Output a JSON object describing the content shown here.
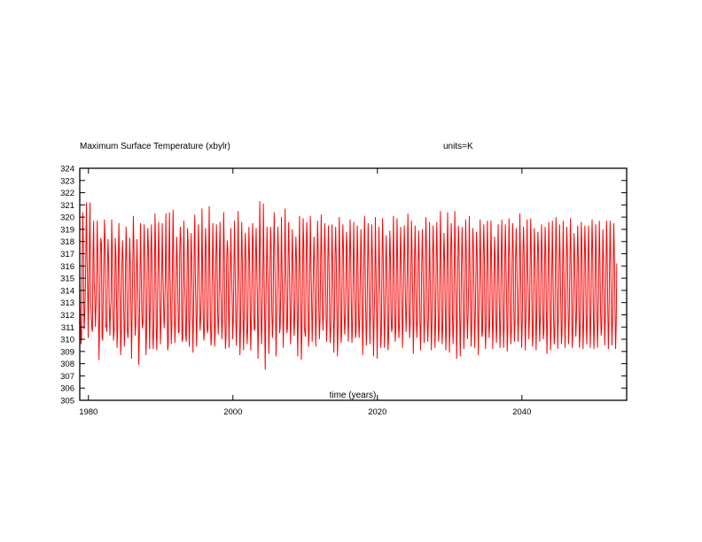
{
  "header": {
    "title": "Maximum Surface Temperature (xbylr)",
    "units": "units=K"
  },
  "chart_data": {
    "type": "line",
    "title": "Maximum Surface Temperature (xbylr)",
    "units_label": "units=K",
    "xlabel": "time (years)",
    "ylabel": "",
    "xlim": [
      1978.8,
      2054.5
    ],
    "ylim": [
      305,
      324
    ],
    "x_ticks": [
      1980,
      2000,
      2020,
      2040
    ],
    "y_ticks": [
      305,
      306,
      307,
      308,
      309,
      310,
      311,
      312,
      313,
      314,
      315,
      316,
      317,
      318,
      319,
      320,
      321,
      322,
      323,
      324
    ],
    "grid": false,
    "legend": "none",
    "series_color": "#ff0000",
    "sampling": "monthly",
    "start_year": 1978.8,
    "series": [
      {
        "values": [
          316.0,
          312.0,
          309.6,
          310.2,
          316.8,
          320.4,
          317.7,
          310.8,
          311.6,
          313.4,
          316.5,
          321.2,
          317.0,
          314.6,
          310.1,
          314.6,
          317.7,
          321.2,
          313.2,
          312.0,
          310.9,
          310.6,
          317.1,
          319.7,
          314.7,
          313.4,
          311.0,
          312.7,
          316.0,
          319.7,
          316.7,
          312.4,
          308.3,
          312.0,
          316.6,
          318.3,
          317.8,
          310.2,
          309.9,
          313.6,
          316.6,
          319.8,
          317.9,
          311.0,
          311.2,
          310.6,
          316.0,
          318.2,
          316.2,
          312.5,
          310.3,
          312.5,
          313.1,
          319.8,
          317.5,
          312.6,
          309.9,
          310.6,
          313.7,
          318.3,
          317.0,
          313.4,
          309.3,
          310.9,
          316.5,
          319.5,
          316.0,
          313.1,
          308.7,
          310.4,
          316.2,
          318.1,
          316.3,
          312.5,
          309.4,
          310.9,
          316.1,
          319.2,
          316.5,
          310.8,
          310.1,
          311.2,
          315.4,
          318.3,
          316.3,
          312.3,
          308.4,
          312.4,
          316.0,
          320.1,
          317.3,
          313.1,
          310.3,
          311.1,
          315.1,
          318.2,
          315.5,
          312.2,
          307.9,
          310.4,
          315.3,
          319.5,
          315.8,
          312.1,
          310.9,
          311.3,
          316.8,
          319.4,
          316.6,
          312.1,
          308.7,
          310.6,
          316.2,
          319.1,
          317.5,
          313.1,
          309.2,
          312.3,
          317.1,
          319.4,
          316.2,
          310.7,
          309.2,
          311.3,
          315.0,
          320.3,
          317.4,
          310.7,
          309.1,
          312.0,
          316.3,
          319.6,
          316.2,
          313.1,
          309.6,
          311.5,
          315.0,
          319.5,
          315.7,
          313.4,
          310.9,
          312.0,
          314.9,
          320.3,
          315.5,
          313.5,
          309.1,
          309.6,
          316.7,
          320.4,
          315.2,
          312.7,
          309.6,
          311.2,
          316.7,
          320.6,
          316.4,
          312.3,
          309.7,
          311.5,
          315.1,
          318.4,
          316.3,
          313.2,
          310.5,
          310.6,
          316.9,
          319.2,
          318.0,
          313.0,
          309.8,
          310.1,
          316.8,
          319.7,
          314.9,
          313.1,
          310.3,
          309.8,
          314.5,
          319.1,
          317.9,
          311.6,
          309.4,
          312.0,
          315.5,
          318.7,
          316.5,
          312.3,
          308.9,
          312.2,
          317.4,
          320.2,
          315.1,
          312.2,
          309.4,
          312.4,
          316.1,
          319.4,
          316.8,
          312.1,
          310.7,
          312.0,
          314.3,
          320.7,
          315.9,
          311.9,
          309.9,
          310.6,
          316.5,
          319.1,
          317.1,
          311.5,
          310.5,
          310.9,
          316.2,
          320.9,
          316.2,
          311.4,
          309.5,
          310.3,
          315.1,
          319.5,
          316.7,
          314.2,
          309.4,
          310.5,
          316.4,
          319.4,
          317.1,
          312.2,
          310.4,
          311.8,
          317.1,
          319.6,
          314.1,
          313.2,
          310.0,
          311.3,
          315.2,
          320.4,
          317.3,
          311.6,
          309.2,
          310.4,
          316.4,
          318.1,
          317.3,
          312.5,
          309.3,
          313.5,
          315.8,
          319.1,
          315.6,
          313.6,
          310.0,
          311.4,
          315.8,
          319.7,
          316.1,
          312.1,
          309.5,
          311.5,
          315.1,
          320.5,
          316.7,
          312.5,
          308.7,
          310.6,
          316.0,
          319.6,
          316.6,
          312.2,
          309.1,
          311.5,
          316.8,
          318.7,
          316.4,
          311.5,
          309.6,
          310.9,
          316.0,
          319.2,
          316.6,
          312.8,
          309.1,
          311.2,
          315.5,
          319.5,
          317.9,
          312.0,
          310.7,
          310.9,
          316.9,
          319.1,
          315.8,
          313.3,
          308.4,
          311.1,
          316.1,
          321.3,
          317.2,
          311.3,
          309.6,
          312.4,
          314.7,
          321.1,
          316.3,
          312.1,
          307.5,
          312.1,
          315.5,
          319.2,
          316.3,
          314.0,
          308.8,
          311.0,
          316.3,
          319.2,
          317.4,
          312.4,
          310.1,
          311.6,
          317.6,
          320.4,
          316.3,
          312.8,
          308.6,
          311.4,
          315.5,
          319.2,
          317.4,
          314.1,
          310.5,
          311.1,
          314.7,
          320.0,
          315.6,
          312.9,
          309.3,
          312.0,
          315.5,
          320.7,
          316.7,
          313.2,
          310.5,
          310.9,
          316.7,
          319.6,
          316.4,
          313.1,
          309.6,
          311.5,
          315.7,
          319.0,
          316.2,
          312.8,
          310.3,
          311.5,
          315.9,
          318.4,
          316.6,
          312.1,
          308.6,
          312.1,
          316.3,
          320.1,
          316.1,
          313.1,
          308.3,
          310.5,
          315.2,
          319.9,
          317.8,
          311.0,
          310.5,
          310.2,
          316.4,
          319.6,
          318.0,
          313.1,
          309.4,
          310.4,
          315.5,
          320.1,
          316.3,
          313.4,
          309.8,
          312.1,
          315.6,
          318.4,
          316.5,
          312.9,
          309.4,
          312.0,
          316.1,
          319.7,
          317.2,
          312.6,
          310.0,
          311.5,
          315.8,
          320.2,
          316.8,
          312.4,
          310.7,
          312.3,
          316.7,
          319.5,
          316.9,
          312.1,
          309.8,
          311.7,
          316.6,
          319.3,
          316.4,
          311.7,
          309.7,
          310.9,
          315.3,
          319.4,
          316.5,
          312.3,
          308.9,
          311.7,
          316.8,
          319.2,
          316.7,
          312.1,
          308.6,
          310.7,
          315.4,
          320.0,
          316.7,
          313.1,
          309.7,
          310.5,
          316.5,
          319.4,
          317.5,
          312.1,
          310.4,
          311.6,
          314.6,
          318.8,
          317.5,
          312.6,
          309.8,
          312.0,
          316.3,
          319.8,
          317.1,
          313.0,
          309.7,
          311.0,
          314.8,
          319.6,
          316.0,
          313.4,
          310.1,
          310.6,
          315.7,
          319.3,
          316.4,
          311.8,
          310.1,
          311.8,
          315.6,
          319.0,
          317.1,
          312.4,
          308.7,
          311.8,
          317.0,
          320.1,
          316.7,
          312.2,
          309.5,
          311.4,
          315.8,
          319.5,
          316.7,
          312.9,
          309.6,
          312.3,
          315.4,
          319.4,
          316.8,
          311.9,
          308.6,
          311.9,
          314.2,
          320.0,
          316.1,
          312.4,
          308.4,
          312.5,
          314.8,
          319.2,
          316.0,
          312.5,
          309.3,
          310.5,
          316.3,
          319.9,
          316.9,
          312.4,
          309.3,
          311.7,
          315.9,
          318.5,
          315.6,
          312.2,
          309.1,
          310.1,
          315.5,
          318.9,
          316.8,
          312.1,
          310.6,
          310.9,
          315.6,
          320.1,
          316.1,
          312.3,
          309.8,
          310.7,
          315.6,
          319.9,
          316.5,
          311.9,
          310.1,
          311.2,
          316.2,
          319.2,
          316.4,
          313.1,
          309.3,
          311.7,
          315.7,
          319.3,
          316.9,
          313.0,
          310.6,
          312.4,
          315.8,
          320.3,
          317.1,
          312.1,
          310.1,
          311.6,
          315.7,
          319.7,
          316.9,
          313.6,
          308.8,
          311.3,
          316.4,
          319.3,
          316.5,
          311.6,
          310.1,
          311.8,
          316.2,
          318.9,
          316.1,
          311.6,
          309.1,
          311.6,
          316.1,
          319.0,
          316.6,
          312.7,
          309.7,
          311.5,
          316.8,
          320.0,
          317.4,
          311.6,
          309.8,
          311.4,
          314.8,
          319.6,
          315.2,
          312.4,
          309.1,
          311.2,
          316.8,
          319.3,
          316.6,
          312.8,
          309.3,
          311.1,
          316.5,
          319.6,
          316.4,
          312.2,
          309.8,
          311.0,
          315.6,
          320.5,
          317.0,
          311.6,
          309.6,
          311.3,
          316.2,
          318.7,
          316.3,
          312.8,
          309.1,
          310.6,
          316.1,
          320.4,
          316.5,
          312.9,
          308.9,
          310.8,
          316.6,
          319.5,
          317.6,
          312.0,
          309.6,
          311.2,
          316.0,
          320.5,
          317.1,
          313.0,
          308.4,
          311.7,
          316.4,
          319.3,
          317.5,
          312.2,
          308.6,
          311.5,
          316.0,
          319.2,
          316.8,
          312.6,
          309.2,
          311.2,
          315.6,
          319.8,
          317.2,
          312.0,
          310.0,
          312.0,
          314.7,
          320.1,
          316.6,
          312.9,
          309.4,
          310.8,
          316.4,
          319.1,
          317.5,
          312.7,
          309.3,
          311.9,
          315.2,
          318.8,
          317.3,
          312.2,
          308.7,
          312.2,
          315.4,
          319.8,
          316.8,
          312.6,
          310.2,
          310.6,
          316.5,
          319.4,
          317.2,
          311.5,
          309.2,
          311.0,
          316.0,
          319.7,
          316.7,
          311.8,
          310.1,
          311.5,
          315.3,
          319.7,
          316.6,
          312.7,
          309.2,
          311.7,
          315.1,
          318.4,
          316.6,
          312.1,
          309.7,
          311.2,
          316.2,
          319.4,
          315.4,
          312.4,
          309.3,
          311.4,
          316.7,
          319.8,
          315.9,
          312.5,
          309.3,
          311.1,
          316.9,
          319.4,
          316.2,
          313.2,
          309.0,
          310.6,
          316.3,
          319.9,
          316.6,
          312.2,
          309.6,
          310.6,
          316.2,
          319.5,
          317.4,
          312.3,
          309.8,
          311.4,
          316.9,
          319.1,
          316.1,
          312.8,
          309.8,
          311.6,
          315.2,
          320.3,
          317.1,
          312.3,
          309.3,
          311.3,
          316.6,
          319.2,
          317.5,
          312.9,
          309.1,
          311.4,
          315.5,
          319.8,
          315.9,
          313.4,
          310.0,
          311.8,
          316.0,
          319.9,
          317.2,
          312.6,
          309.4,
          310.4,
          315.8,
          319.1,
          316.9,
          312.4,
          309.1,
          311.8,
          316.4,
          318.8,
          317.2,
          311.9,
          309.8,
          311.8,
          316.0,
          319.4,
          317.0,
          312.6,
          310.0,
          310.7,
          315.9,
          319.2,
          317.1,
          312.5,
          308.8,
          311.4,
          315.6,
          319.6,
          317.2,
          312.8,
          309.1,
          310.8,
          315.6,
          319.7,
          315.6,
          311.9,
          309.6,
          310.3,
          316.1,
          320.0,
          317.5,
          312.5,
          309.2,
          311.9,
          316.0,
          319.4,
          316.4,
          312.9,
          309.6,
          310.4,
          315.9,
          319.7,
          316.0,
          313.1,
          309.3,
          311.8,
          316.5,
          319.2,
          317.0,
          312.7,
          309.6,
          311.4,
          315.8,
          319.9,
          317.3,
          312.5,
          309.3,
          310.7,
          315.6,
          318.7,
          316.8,
          312.6,
          310.2,
          311.7,
          315.7,
          319.3,
          317.0,
          312.5,
          309.3,
          310.4,
          315.8,
          319.6,
          317.7,
          312.3,
          309.2,
          311.5,
          316.2,
          319.3,
          316.9,
          312.0,
          309.6,
          311.6,
          316.2,
          319.3,
          316.3,
          312.1,
          309.3,
          311.9,
          316.5,
          319.8,
          317.0,
          312.3,
          309.2,
          311.2,
          315.2,
          319.4,
          316.9,
          312.0,
          309.3,
          311.7,
          315.3,
          319.7,
          316.6,
          312.4,
          310.3,
          311.0,
          315.1,
          319.0,
          316.7,
          313.0,
          309.5,
          311.7,
          315.8,
          319.7,
          317.1,
          312.6,
          309.2,
          311.5,
          316.0,
          319.7,
          316.3,
          312.4,
          309.5,
          311.6,
          316.1,
          319.5,
          316.8,
          312.5,
          309.2,
          311.1,
          316.2
        ]
      }
    ]
  }
}
